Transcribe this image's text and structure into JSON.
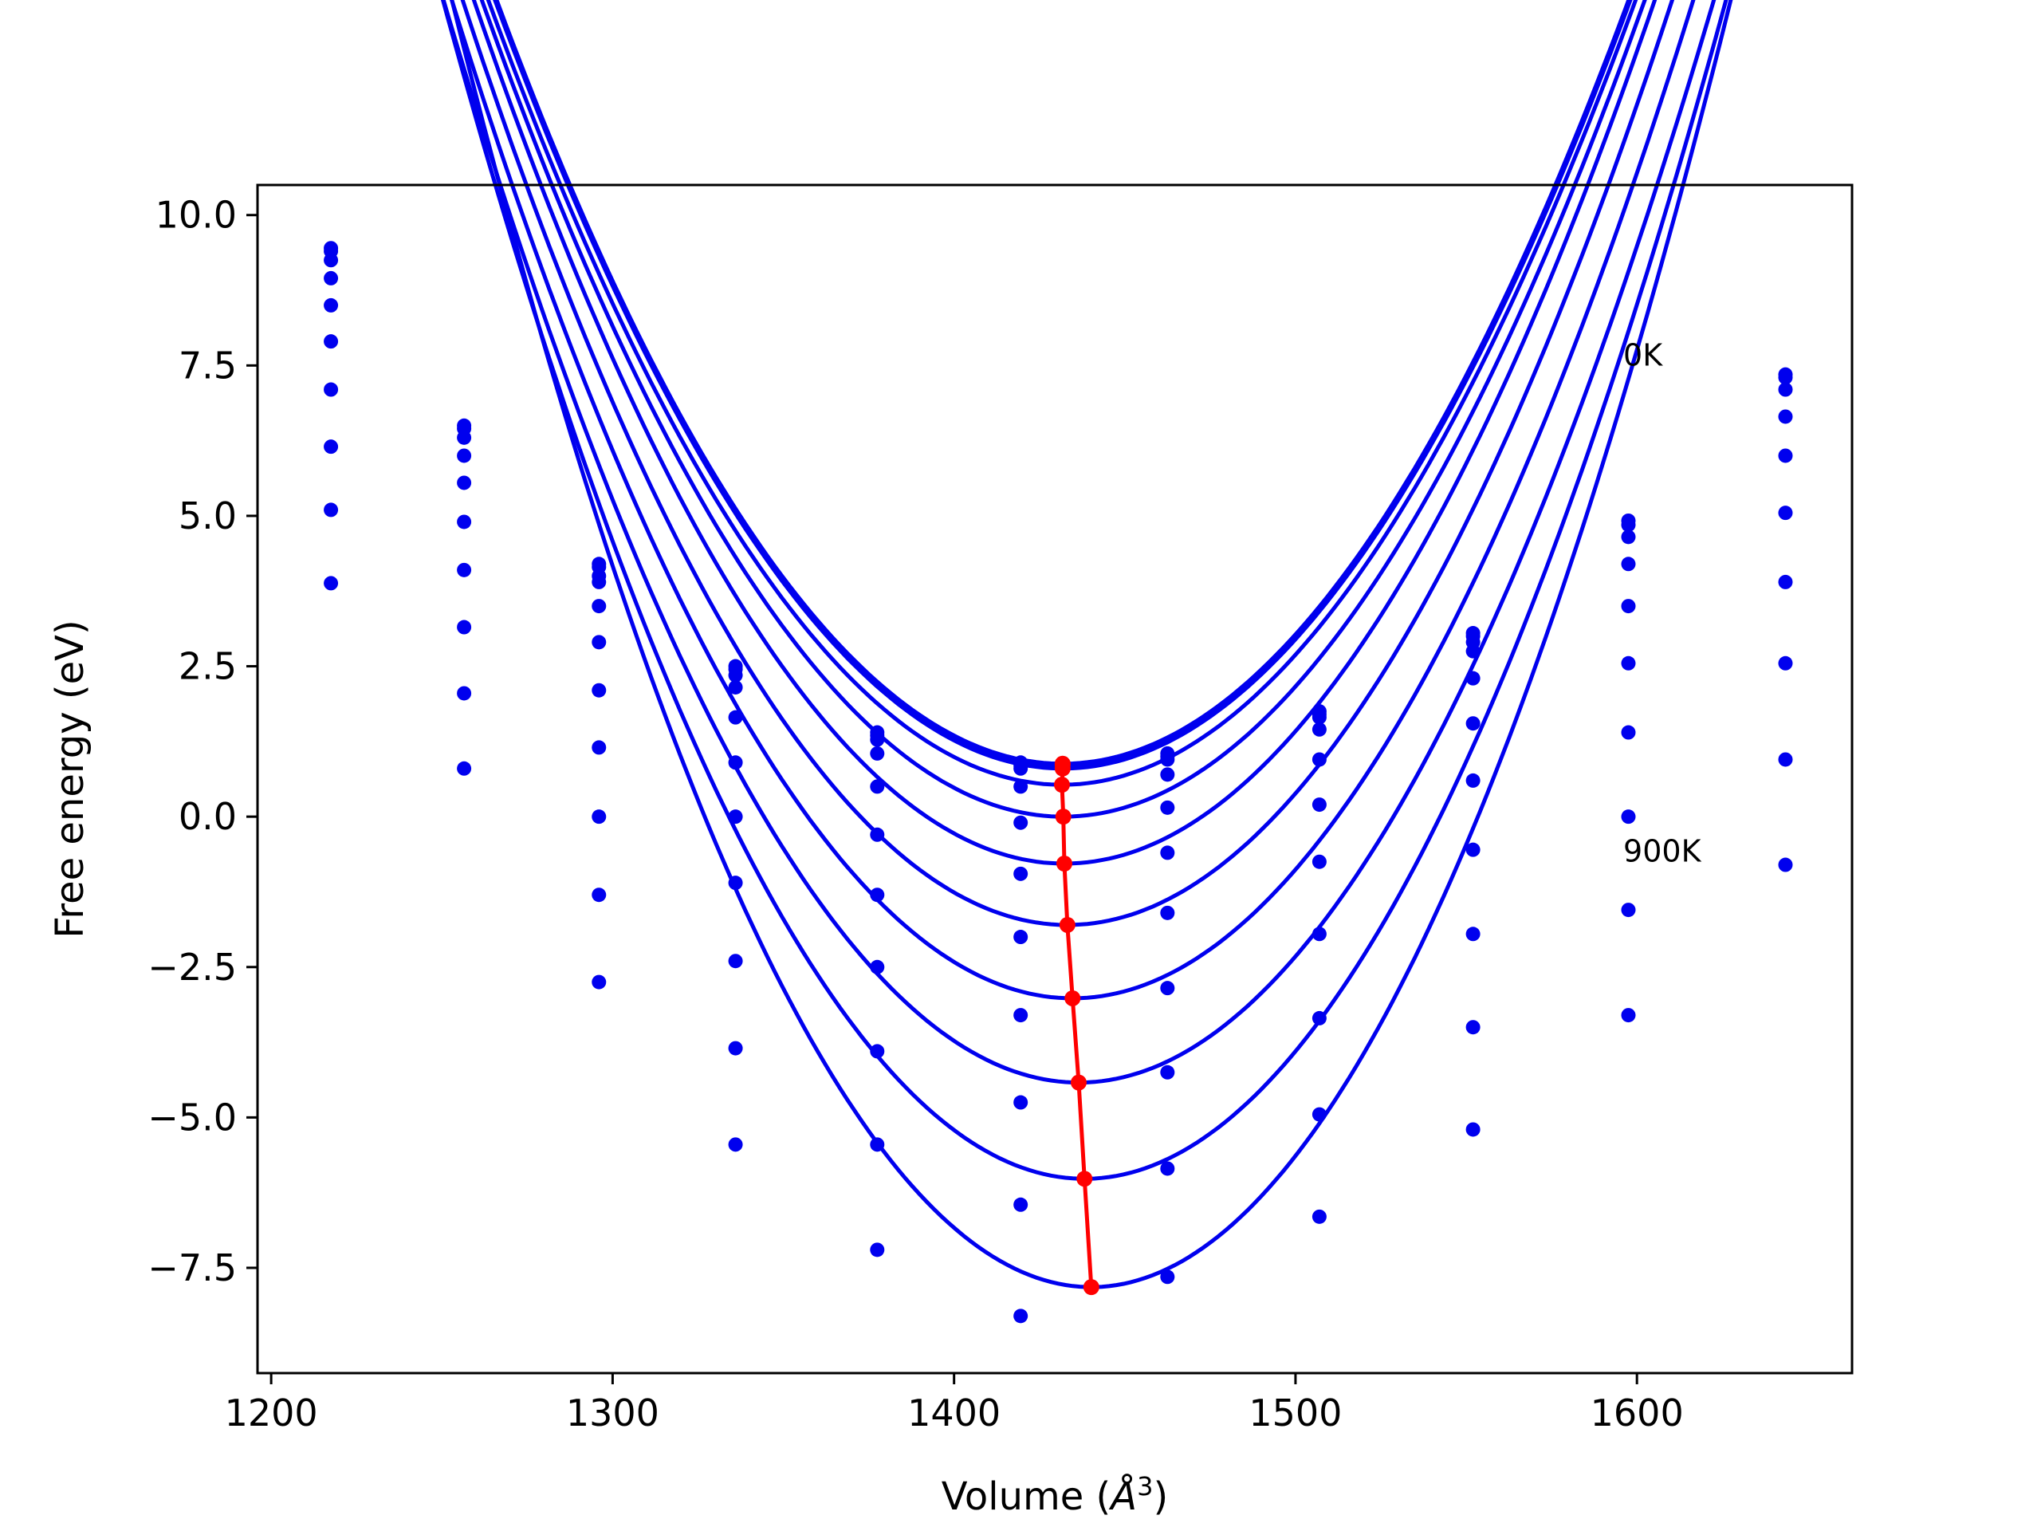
{
  "chart_data": {
    "type": "line",
    "xlabel": "Volume (Å³)",
    "xlabel_parts": {
      "prefix": "Volume (",
      "symbol": "Å",
      "sup": "3",
      "suffix": ")"
    },
    "ylabel": "Free energy (eV)",
    "xlim": [
      1196,
      1663
    ],
    "ylim": [
      -9.25,
      10.5
    ],
    "xticks": [
      1200,
      1300,
      1400,
      1500,
      1600
    ],
    "xtick_labels": [
      "1200",
      "1300",
      "1400",
      "1500",
      "1600"
    ],
    "yticks": [
      10.0,
      7.5,
      5.0,
      2.5,
      0.0,
      -2.5,
      -5.0,
      -7.5
    ],
    "ytick_labels": [
      "10.0",
      "7.5",
      "5.0",
      "2.5",
      "0.0",
      "−2.5",
      "−5.0",
      "−7.5"
    ],
    "grid": false,
    "legend": "none",
    "colors": {
      "curves": "#0000ee",
      "points": "#0000ee",
      "minima": "#ff0000"
    },
    "annotations": [
      {
        "text": "0K",
        "x": 1596,
        "y": 7.5
      },
      {
        "text": "900K",
        "x": 1596,
        "y": -0.75
      }
    ],
    "x_points": [
      1217.5,
      1256.5,
      1296,
      1336,
      1377.5,
      1419.5,
      1462.5,
      1507,
      1552,
      1597.5,
      1643.5
    ],
    "fit_range": [
      1217.5,
      1643.5
    ],
    "series": [
      {
        "curvature": 0.000462,
        "minimum": [
          1431.8,
          0.88
        ],
        "points": [
          9.45,
          6.5,
          4.2,
          2.5,
          1.4,
          0.9,
          1.05,
          1.75,
          3.05,
          4.92,
          7.35
        ]
      },
      {
        "curvature": 0.000462,
        "minimum": [
          1431.8,
          0.86
        ],
        "points": [
          9.4,
          6.45,
          4.15,
          2.45,
          1.35,
          0.85,
          1.0,
          1.7,
          3.0,
          4.85,
          7.3
        ]
      },
      {
        "curvature": 0.000462,
        "minimum": [
          1431.8,
          0.8
        ],
        "points": [
          9.25,
          6.3,
          4.0,
          2.35,
          1.28,
          0.8,
          0.95,
          1.65,
          2.9,
          4.65,
          7.1
        ]
      },
      {
        "curvature": 0.000462,
        "minimum": [
          1431.6,
          0.53
        ],
        "points": [
          8.95,
          6.0,
          3.9,
          2.15,
          1.05,
          0.5,
          0.7,
          1.45,
          2.75,
          4.2,
          6.65
        ]
      },
      {
        "curvature": 0.000468,
        "minimum": [
          1432.0,
          0.0
        ],
        "points": [
          8.5,
          5.55,
          3.5,
          1.65,
          0.5,
          -0.1,
          0.15,
          0.95,
          2.3,
          3.5,
          6.0
        ]
      },
      {
        "curvature": 0.00048,
        "minimum": [
          1432.3,
          -0.78
        ],
        "points": [
          7.9,
          4.9,
          2.9,
          0.9,
          -0.3,
          -0.95,
          -0.6,
          0.2,
          1.55,
          2.55,
          5.05
        ]
      },
      {
        "curvature": 0.00049,
        "minimum": [
          1433.2,
          -1.8
        ],
        "points": [
          7.1,
          4.1,
          2.1,
          0.0,
          -1.3,
          -2.0,
          -1.6,
          -0.75,
          0.6,
          1.4,
          3.9
        ]
      },
      {
        "curvature": 0.000502,
        "minimum": [
          1434.7,
          -3.02
        ],
        "points": [
          6.15,
          3.15,
          1.15,
          -1.1,
          -2.5,
          -3.3,
          -2.85,
          -1.95,
          -0.55,
          0.0,
          2.55
        ]
      },
      {
        "curvature": 0.00052,
        "minimum": [
          1436.5,
          -4.42
        ],
        "points": [
          5.1,
          2.05,
          0.0,
          -2.4,
          -3.9,
          -4.75,
          -4.25,
          -3.35,
          -1.95,
          -1.55,
          0.95
        ]
      },
      {
        "curvature": 0.000555,
        "minimum": [
          1438.2,
          -6.02
        ],
        "points": [
          3.88,
          0.8,
          -1.3,
          -3.85,
          -5.45,
          -6.45,
          -5.85,
          -4.95,
          -3.5,
          -3.3,
          -0.8
        ]
      },
      {
        "curvature": 0.00061,
        "minimum": [
          1440.2,
          -7.82
        ],
        "points": [
          null,
          null,
          -2.75,
          -5.45,
          -7.2,
          -8.3,
          -7.65,
          -6.65,
          -5.2,
          null,
          null
        ]
      }
    ],
    "minima_line": {
      "x": [
        1431.8,
        1431.8,
        1431.8,
        1431.6,
        1432.0,
        1432.3,
        1433.2,
        1434.7,
        1436.5,
        1438.2,
        1440.2
      ],
      "y": [
        0.88,
        0.86,
        0.8,
        0.53,
        0.0,
        -0.78,
        -1.8,
        -3.02,
        -4.42,
        -6.02,
        -7.82
      ]
    }
  }
}
